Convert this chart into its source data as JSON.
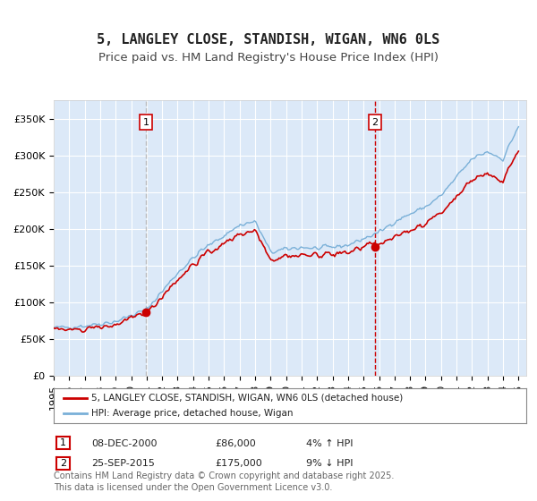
{
  "title": "5, LANGLEY CLOSE, STANDISH, WIGAN, WN6 0LS",
  "subtitle": "Price paid vs. HM Land Registry's House Price Index (HPI)",
  "xlabel": "",
  "ylabel": "",
  "ylim": [
    0,
    375000
  ],
  "yticks": [
    0,
    50000,
    100000,
    150000,
    200000,
    250000,
    300000,
    350000
  ],
  "ytick_labels": [
    "£0",
    "£50K",
    "£100K",
    "£150K",
    "£200K",
    "£250K",
    "£300K",
    "£350K"
  ],
  "xlim_start": 1995.0,
  "xlim_end": 2025.5,
  "background_color": "#ffffff",
  "plot_bg_color": "#dce9f8",
  "grid_color": "#ffffff",
  "hpi_line_color": "#7ab0d8",
  "price_line_color": "#cc0000",
  "vline1_color": "#b0b0b0",
  "vline2_color": "#cc0000",
  "sale1_date": 2000.94,
  "sale1_price": 86000,
  "sale2_date": 2015.73,
  "sale2_price": 175000,
  "legend_house": "5, LANGLEY CLOSE, STANDISH, WIGAN, WN6 0LS (detached house)",
  "legend_hpi": "HPI: Average price, detached house, Wigan",
  "annotation1_label": "1",
  "annotation2_label": "2",
  "table_row1": "1    08-DEC-2000    £86,000    4% ↑ HPI",
  "table_row2": "2    25-SEP-2015    £175,000    9% ↓ HPI",
  "footer": "Contains HM Land Registry data © Crown copyright and database right 2025.\nThis data is licensed under the Open Government Licence v3.0.",
  "title_fontsize": 11,
  "subtitle_fontsize": 9.5,
  "tick_fontsize": 8,
  "legend_fontsize": 8,
  "footer_fontsize": 7
}
